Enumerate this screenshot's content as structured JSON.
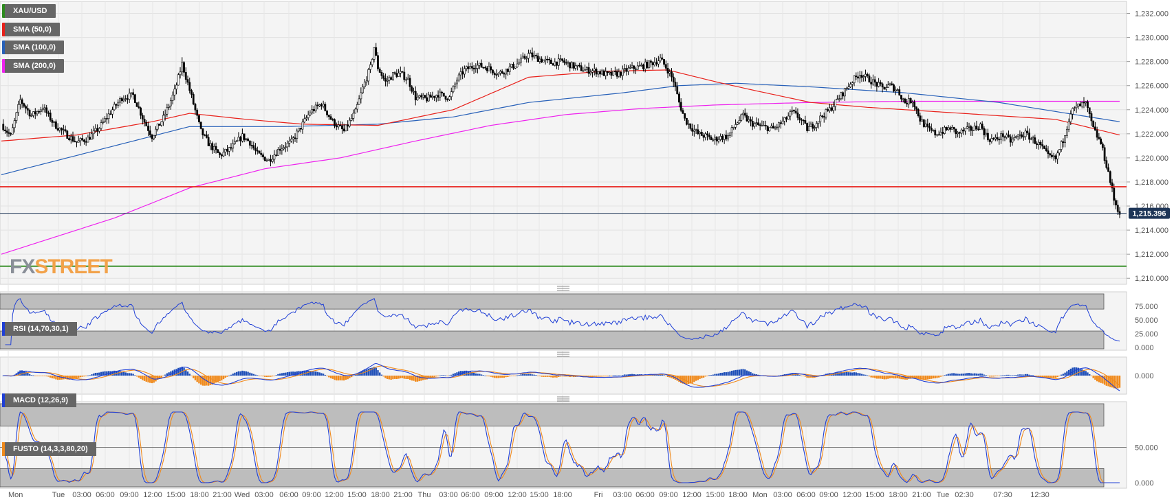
{
  "symbol": "XAU/USD",
  "logo": {
    "part1": "FX",
    "part2": "STREET"
  },
  "overlays": [
    {
      "label": "SMA (50,0)",
      "color": "#e8201a"
    },
    {
      "label": "SMA (100,0)",
      "color": "#2760b8"
    },
    {
      "label": "SMA (200,0)",
      "color": "#ee22ee"
    }
  ],
  "indicators": {
    "rsi": {
      "label": "RSI (14,70,30,1)",
      "ticks": [
        "75.000",
        "50.000",
        "25.000",
        "0.000"
      ]
    },
    "macd": {
      "label": "MACD (12,26,9)",
      "ticks": [
        "0.000"
      ]
    },
    "fusto": {
      "label": "FUSTO (14,3,3,80,20)",
      "ticks": [
        "50.000",
        "0.000"
      ]
    }
  },
  "price_badge": "1,215.396",
  "x_axis_labels": [
    "Mon",
    "Tue",
    "03:00",
    "06:00",
    "09:00",
    "12:00",
    "15:00",
    "18:00",
    "21:00",
    "Wed",
    "03:00",
    "06:00",
    "09:00",
    "12:00",
    "15:00",
    "18:00",
    "21:00",
    "Thu",
    "03:00",
    "06:00",
    "09:00",
    "12:00",
    "15:00",
    "18:00",
    "Fri",
    "03:00",
    "06:00",
    "09:00",
    "12:00",
    "15:00",
    "18:00",
    "Mon",
    "03:00",
    "06:00",
    "09:00",
    "12:00",
    "15:00",
    "18:00",
    "21:00",
    "Tue",
    "02:30",
    "07:30",
    "12:30"
  ],
  "colors": {
    "up": "#ffffff",
    "down": "#000000",
    "sma50": "#e8201a",
    "sma100": "#2760b8",
    "sma200": "#ee22ee",
    "resistance": "#e8201a",
    "support": "#2d8a1e",
    "current": "#1d3557",
    "rsi": "#1f3fd6",
    "macd_pos": "#1f4fb8",
    "macd_neg": "#f08a1c",
    "signal": "#f08a1c"
  },
  "chart_data": {
    "type": "candlestick",
    "title": "XAU/USD",
    "y_ticks": [
      "1,232.000",
      "1,230.000",
      "1,228.000",
      "1,226.000",
      "1,224.000",
      "1,222.000",
      "1,220.000",
      "1,218.000",
      "1,216.000",
      "1,214.000",
      "1,212.000",
      "1,210.000"
    ],
    "ylim": [
      1209.5,
      1233.0
    ],
    "horizontal_levels": [
      {
        "name": "resistance",
        "value": 1217.6
      },
      {
        "name": "current",
        "value": 1215.396
      },
      {
        "name": "support",
        "value": 1211.0
      }
    ],
    "close_path": [
      [
        0,
        1222.8
      ],
      [
        5,
        1221.8
      ],
      [
        10,
        1224.8
      ],
      [
        16,
        1223.5
      ],
      [
        22,
        1224.2
      ],
      [
        28,
        1222.8
      ],
      [
        34,
        1222.0
      ],
      [
        40,
        1221.3
      ],
      [
        46,
        1221.6
      ],
      [
        52,
        1222.5
      ],
      [
        58,
        1223.8
      ],
      [
        64,
        1225.0
      ],
      [
        70,
        1225.2
      ],
      [
        76,
        1223.0
      ],
      [
        80,
        1221.8
      ],
      [
        86,
        1223.3
      ],
      [
        92,
        1225.5
      ],
      [
        96,
        1227.8
      ],
      [
        99,
        1226.2
      ],
      [
        102,
        1224.5
      ],
      [
        106,
        1222.2
      ],
      [
        110,
        1221.2
      ],
      [
        116,
        1220.2
      ],
      [
        122,
        1220.8
      ],
      [
        128,
        1221.8
      ],
      [
        132,
        1221.3
      ],
      [
        136,
        1220.3
      ],
      [
        142,
        1219.8
      ],
      [
        148,
        1220.8
      ],
      [
        154,
        1221.3
      ],
      [
        158,
        1222.3
      ],
      [
        164,
        1223.8
      ],
      [
        170,
        1224.5
      ],
      [
        176,
        1223.0
      ],
      [
        182,
        1222.2
      ],
      [
        188,
        1223.8
      ],
      [
        192,
        1225.8
      ],
      [
        196,
        1227.5
      ],
      [
        198,
        1229.2
      ],
      [
        200,
        1227.5
      ],
      [
        204,
        1226.3
      ],
      [
        208,
        1226.9
      ],
      [
        212,
        1227.0
      ],
      [
        216,
        1226.5
      ],
      [
        220,
        1225.0
      ],
      [
        226,
        1224.9
      ],
      [
        232,
        1225.3
      ],
      [
        238,
        1225.0
      ],
      [
        242,
        1226.5
      ],
      [
        246,
        1227.3
      ],
      [
        252,
        1227.7
      ],
      [
        258,
        1227.5
      ],
      [
        264,
        1227.0
      ],
      [
        268,
        1227.3
      ],
      [
        274,
        1227.8
      ],
      [
        280,
        1228.6
      ],
      [
        286,
        1228.2
      ],
      [
        292,
        1227.9
      ],
      [
        298,
        1228.0
      ],
      [
        304,
        1227.6
      ],
      [
        310,
        1227.3
      ],
      [
        316,
        1227.2
      ],
      [
        322,
        1226.9
      ],
      [
        328,
        1227.0
      ],
      [
        334,
        1227.4
      ],
      [
        340,
        1227.6
      ],
      [
        346,
        1227.9
      ],
      [
        350,
        1228.2
      ],
      [
        354,
        1227.3
      ],
      [
        357,
        1226.4
      ],
      [
        360,
        1224.6
      ],
      [
        363,
        1223.2
      ],
      [
        366,
        1222.6
      ],
      [
        370,
        1222.0
      ],
      [
        374,
        1221.8
      ],
      [
        378,
        1221.5
      ],
      [
        382,
        1221.7
      ],
      [
        386,
        1221.8
      ],
      [
        390,
        1222.8
      ],
      [
        394,
        1223.5
      ],
      [
        398,
        1222.9
      ],
      [
        404,
        1222.6
      ],
      [
        410,
        1222.4
      ],
      [
        416,
        1223.1
      ],
      [
        420,
        1223.8
      ],
      [
        424,
        1223.3
      ],
      [
        428,
        1222.4
      ],
      [
        432,
        1222.8
      ],
      [
        436,
        1223.5
      ],
      [
        440,
        1224.0
      ],
      [
        444,
        1224.8
      ],
      [
        448,
        1225.6
      ],
      [
        452,
        1226.4
      ],
      [
        456,
        1227.0
      ],
      [
        460,
        1226.6
      ],
      [
        464,
        1226.2
      ],
      [
        468,
        1225.8
      ],
      [
        472,
        1226.0
      ],
      [
        476,
        1225.6
      ],
      [
        480,
        1224.6
      ],
      [
        484,
        1224.8
      ],
      [
        488,
        1223.2
      ],
      [
        492,
        1222.4
      ],
      [
        496,
        1222.0
      ],
      [
        500,
        1222.2
      ],
      [
        504,
        1222.5
      ],
      [
        508,
        1222.0
      ],
      [
        512,
        1222.3
      ],
      [
        516,
        1222.4
      ],
      [
        520,
        1222.7
      ],
      [
        524,
        1221.6
      ],
      [
        528,
        1221.5
      ],
      [
        532,
        1221.9
      ],
      [
        536,
        1221.4
      ],
      [
        540,
        1221.8
      ],
      [
        544,
        1222.0
      ],
      [
        548,
        1221.5
      ],
      [
        552,
        1221.0
      ],
      [
        556,
        1220.1
      ],
      [
        560,
        1219.9
      ],
      [
        564,
        1221.5
      ],
      [
        568,
        1223.8
      ],
      [
        572,
        1224.3
      ],
      [
        576,
        1224.5
      ],
      [
        580,
        1222.4
      ],
      [
        584,
        1221.2
      ],
      [
        588,
        1218.8
      ],
      [
        591,
        1216.5
      ],
      [
        594,
        1215.396
      ]
    ],
    "sma50": [
      [
        0,
        1221.4
      ],
      [
        40,
        1221.9
      ],
      [
        80,
        1223.0
      ],
      [
        100,
        1223.7
      ],
      [
        130,
        1223.2
      ],
      [
        160,
        1222.8
      ],
      [
        200,
        1222.7
      ],
      [
        240,
        1224.0
      ],
      [
        280,
        1226.7
      ],
      [
        320,
        1227.2
      ],
      [
        354,
        1227.3
      ],
      [
        380,
        1226.3
      ],
      [
        400,
        1225.6
      ],
      [
        430,
        1224.6
      ],
      [
        460,
        1224.2
      ],
      [
        500,
        1223.8
      ],
      [
        560,
        1223.2
      ],
      [
        594,
        1221.9
      ]
    ],
    "sma100": [
      [
        0,
        1218.6
      ],
      [
        60,
        1221.0
      ],
      [
        100,
        1222.6
      ],
      [
        150,
        1222.6
      ],
      [
        200,
        1222.8
      ],
      [
        240,
        1223.4
      ],
      [
        280,
        1224.6
      ],
      [
        330,
        1225.4
      ],
      [
        360,
        1226.0
      ],
      [
        390,
        1226.2
      ],
      [
        430,
        1225.9
      ],
      [
        480,
        1225.4
      ],
      [
        530,
        1224.6
      ],
      [
        570,
        1223.6
      ],
      [
        594,
        1223.0
      ]
    ],
    "sma200": [
      [
        0,
        1212.0
      ],
      [
        60,
        1215.0
      ],
      [
        100,
        1217.5
      ],
      [
        140,
        1219.1
      ],
      [
        180,
        1220.0
      ],
      [
        220,
        1221.4
      ],
      [
        260,
        1222.7
      ],
      [
        300,
        1223.6
      ],
      [
        340,
        1224.1
      ],
      [
        380,
        1224.4
      ],
      [
        430,
        1224.6
      ],
      [
        480,
        1224.7
      ],
      [
        540,
        1224.7
      ],
      [
        594,
        1224.7
      ]
    ]
  }
}
